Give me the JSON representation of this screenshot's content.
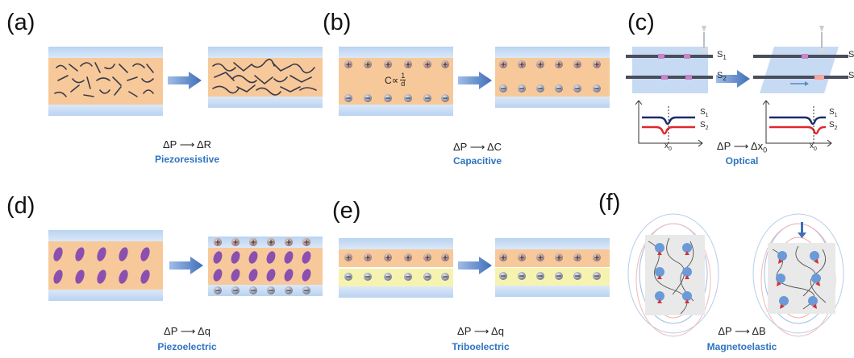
{
  "panels": [
    {
      "letter": "(a)",
      "change": "ΔP",
      "result": "ΔR",
      "caption": "Piezoresistive",
      "accent": "#f7c99a"
    },
    {
      "letter": "(b)",
      "change": "ΔP",
      "result": "ΔC",
      "caption": "Capacitive",
      "accent": "#f7c99a"
    },
    {
      "letter": "(c)",
      "change": "ΔP",
      "result": "Δx",
      "result_sub": "0",
      "caption": "Optical",
      "accent": "#c6dbf3"
    },
    {
      "letter": "(d)",
      "change": "ΔP",
      "result": "Δq",
      "caption": "Piezoelectric",
      "accent": "#8b4fb0"
    },
    {
      "letter": "(e)",
      "change": "ΔP",
      "result": "Δq",
      "caption": "Triboelectric",
      "accent": "#f6f3b0"
    },
    {
      "letter": "(f)",
      "change": "ΔP",
      "result": "ΔB",
      "caption": "Magnetoelastic",
      "accent": "#e8e8e8"
    }
  ],
  "capacitive_relation": {
    "symbol": "C∝",
    "numerator": "1",
    "denominator": "d"
  },
  "optical_labels": {
    "s1": "S",
    "s1_sub": "1",
    "s2": "S",
    "s2_sub": "2",
    "x0": "x",
    "x0_sub": "0"
  },
  "colors": {
    "electrode": "#a9c8ec",
    "substrate": "#f7c99a",
    "flow_arrow": "#5a86c6",
    "caption": "#2e74c0",
    "signal_s1": "#1b2b6b",
    "signal_s2": "#e0262b"
  }
}
